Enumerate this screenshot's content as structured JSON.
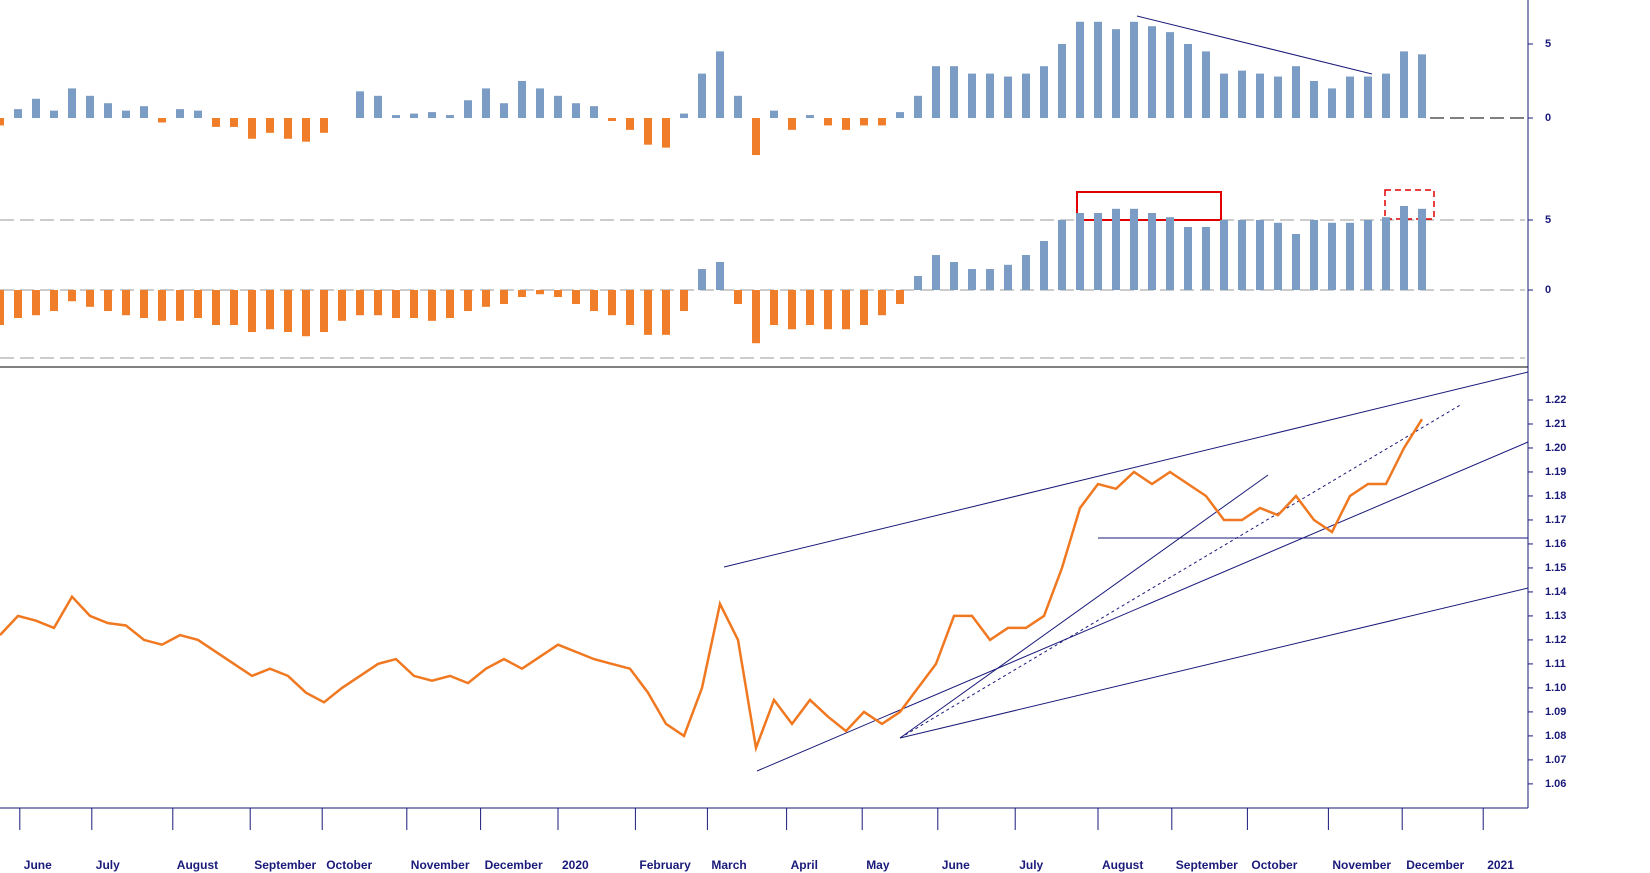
{
  "chart_data": [
    {
      "type": "bar",
      "color": "#7b9cc4",
      "negative_color": "#f07d2a",
      "xlim": [
        0,
        85
      ],
      "ylim": [
        -3.51,
        7.97
      ],
      "yticks": [
        0,
        5
      ],
      "values": [
        -0.5,
        0.6,
        1.3,
        0.5,
        2.0,
        1.5,
        1.0,
        0.5,
        0.8,
        -0.3,
        0.6,
        0.5,
        -0.6,
        -0.6,
        -1.4,
        -1.0,
        -1.4,
        -1.6,
        -1.0,
        0,
        1.8,
        1.5,
        0.2,
        0.3,
        0.4,
        0.2,
        1.2,
        2.0,
        1.0,
        2.5,
        2.0,
        1.5,
        1.0,
        0.8,
        -0.2,
        -0.8,
        -1.8,
        -2.0,
        0.3,
        3.0,
        4.5,
        1.5,
        -2.5,
        0.5,
        -0.8,
        0.2,
        -0.5,
        -0.8,
        -0.5,
        -0.5,
        0.4,
        1.5,
        3.5,
        3.5,
        3.0,
        3.0,
        2.8,
        3.0,
        3.5,
        5.0,
        6.5,
        6.5,
        6.0,
        6.5,
        6.2,
        5.8,
        5.0,
        4.5,
        3.0,
        3.2,
        3.0,
        2.8,
        3.5,
        2.5,
        2.0,
        2.8,
        2.8,
        3.0,
        4.5,
        4.3
      ]
    },
    {
      "type": "bar",
      "color": "#7b9cc4",
      "negative_color": "#f07d2a",
      "xlim": [
        0,
        85
      ],
      "ylim": [
        -5.14,
        8
      ],
      "yticks": [
        0,
        5
      ],
      "values": [
        -2.5,
        -2,
        -1.8,
        -1.5,
        -0.8,
        -1.2,
        -1.5,
        -1.8,
        -2.0,
        -2.2,
        -2.2,
        -2.0,
        -2.5,
        -2.5,
        -3.0,
        -2.8,
        -3.0,
        -3.3,
        -3.0,
        -2.2,
        -1.8,
        -1.8,
        -2.0,
        -2.0,
        -2.2,
        -2.0,
        -1.5,
        -1.2,
        -1.0,
        -0.5,
        -0.3,
        -0.5,
        -1.0,
        -1.5,
        -1.8,
        -2.5,
        -3.2,
        -3.2,
        -1.5,
        1.5,
        2.0,
        -1.0,
        -3.8,
        -2.5,
        -2.8,
        -2.5,
        -2.8,
        -2.8,
        -2.5,
        -1.8,
        -1.0,
        1.0,
        2.5,
        2.0,
        1.5,
        1.5,
        1.8,
        2.5,
        3.5,
        5.0,
        5.5,
        5.5,
        5.8,
        5.8,
        5.5,
        5.2,
        4.5,
        4.5,
        5.0,
        5.0,
        5.0,
        4.8,
        4.0,
        5.0,
        4.8,
        4.8,
        5.0,
        5.2,
        6.0,
        5.8
      ]
    },
    {
      "type": "line",
      "color": "#f07820",
      "xlim": [
        0,
        85
      ],
      "ylim": [
        1.0512,
        1.2325
      ],
      "yticks": [
        1.06,
        1.07,
        1.08,
        1.09,
        {
          "value": 1.1,
          "label": "1.10"
        },
        1.11,
        1.12,
        1.13,
        1.14,
        1.15,
        1.16,
        1.17,
        1.18,
        1.19,
        {
          "value": 1.2,
          "label": "1.20"
        },
        1.21,
        1.22
      ],
      "xticks": [
        {
          "value": 1.1,
          "label": "June"
        },
        {
          "value": 5.1,
          "label": "July"
        },
        {
          "value": 9.6,
          "label": "August"
        },
        {
          "value": 13.9,
          "label": "September"
        },
        {
          "value": 17.9,
          "label": "October"
        },
        {
          "value": 22.6,
          "label": "November"
        },
        {
          "value": 26.7,
          "label": "December"
        },
        {
          "value": 31,
          "label": "2020"
        },
        {
          "value": 35.3,
          "label": "February"
        },
        {
          "value": 39.3,
          "label": "March"
        },
        {
          "value": 43.7,
          "label": "April"
        },
        {
          "value": 47.9,
          "label": "May"
        },
        {
          "value": 52.1,
          "label": "June"
        },
        {
          "value": 56.4,
          "label": "July"
        },
        {
          "value": 61,
          "label": "August"
        },
        {
          "value": 65.1,
          "label": "September"
        },
        {
          "value": 69.3,
          "label": "October"
        },
        {
          "value": 73.8,
          "label": "November"
        },
        {
          "value": 77.9,
          "label": "December"
        },
        {
          "value": 82.4,
          "label": "2021"
        }
      ],
      "values": [
        1.122,
        1.13,
        1.128,
        1.125,
        1.138,
        1.13,
        1.127,
        1.126,
        1.12,
        1.118,
        1.122,
        1.12,
        1.115,
        1.11,
        1.105,
        1.108,
        1.105,
        1.098,
        1.094,
        1.1,
        1.105,
        1.11,
        1.112,
        1.105,
        1.103,
        1.105,
        1.102,
        1.108,
        1.112,
        1.108,
        1.113,
        1.118,
        1.115,
        1.112,
        1.11,
        1.108,
        1.098,
        1.085,
        1.08,
        1.1,
        1.135,
        1.12,
        1.075,
        1.095,
        1.085,
        1.095,
        1.088,
        1.082,
        1.09,
        1.085,
        1.09,
        1.1,
        1.11,
        1.13,
        1.13,
        1.12,
        1.125,
        1.125,
        1.13,
        1.15,
        1.175,
        1.185,
        1.183,
        1.19,
        1.185,
        1.19,
        1.185,
        1.18,
        1.17,
        1.17,
        1.175,
        1.172,
        1.18,
        1.17,
        1.165,
        1.18,
        1.185,
        1.185,
        1.2,
        1.212
      ]
    }
  ]
}
